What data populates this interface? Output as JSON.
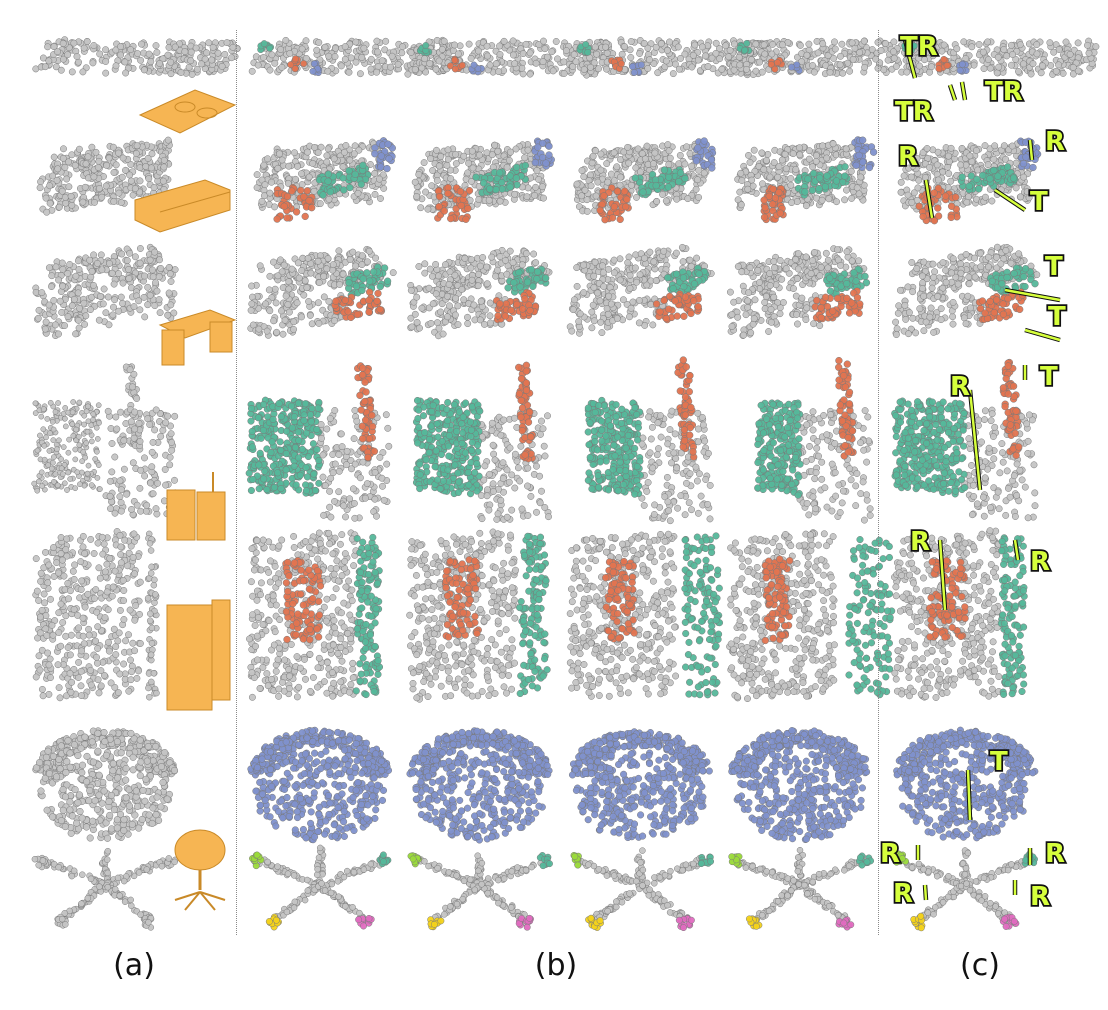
{
  "figure": {
    "column_labels": {
      "a": "(a)",
      "b": "(b)",
      "c": "(c)"
    },
    "colors": {
      "points": "#c4c4c4",
      "point_edge": "#8e8e8e",
      "mesh": "#f6b553",
      "part_orange": "#e27450",
      "part_green": "#55b79a",
      "part_blue": "#7f91cc",
      "part_lime": "#9bdb3a",
      "part_yellow": "#f4d31a",
      "part_pink": "#e06cc0",
      "joint_axis": "#d6ff3c"
    },
    "rows": [
      {
        "object": "cooktop",
        "icon": "cooktop-mesh-icon",
        "joints": [
          "TR",
          "TR",
          "TR"
        ]
      },
      {
        "object": "tv-stand",
        "icon": "tv-stand-mesh-icon",
        "joints": [
          "R",
          "R",
          "T"
        ]
      },
      {
        "object": "desk",
        "icon": "desk-mesh-icon",
        "joints": [
          "T",
          "T"
        ]
      },
      {
        "object": "suitcase",
        "icon": "suitcase-mesh-icon",
        "joints": [
          "R",
          "T"
        ]
      },
      {
        "object": "cabinet",
        "icon": "cabinet-mesh-icon",
        "joints": [
          "R",
          "R"
        ]
      },
      {
        "object": "office-chair",
        "icon": "office-chair-mesh-icon",
        "joints": [
          "T",
          "R",
          "R",
          "R",
          "R"
        ]
      }
    ]
  }
}
